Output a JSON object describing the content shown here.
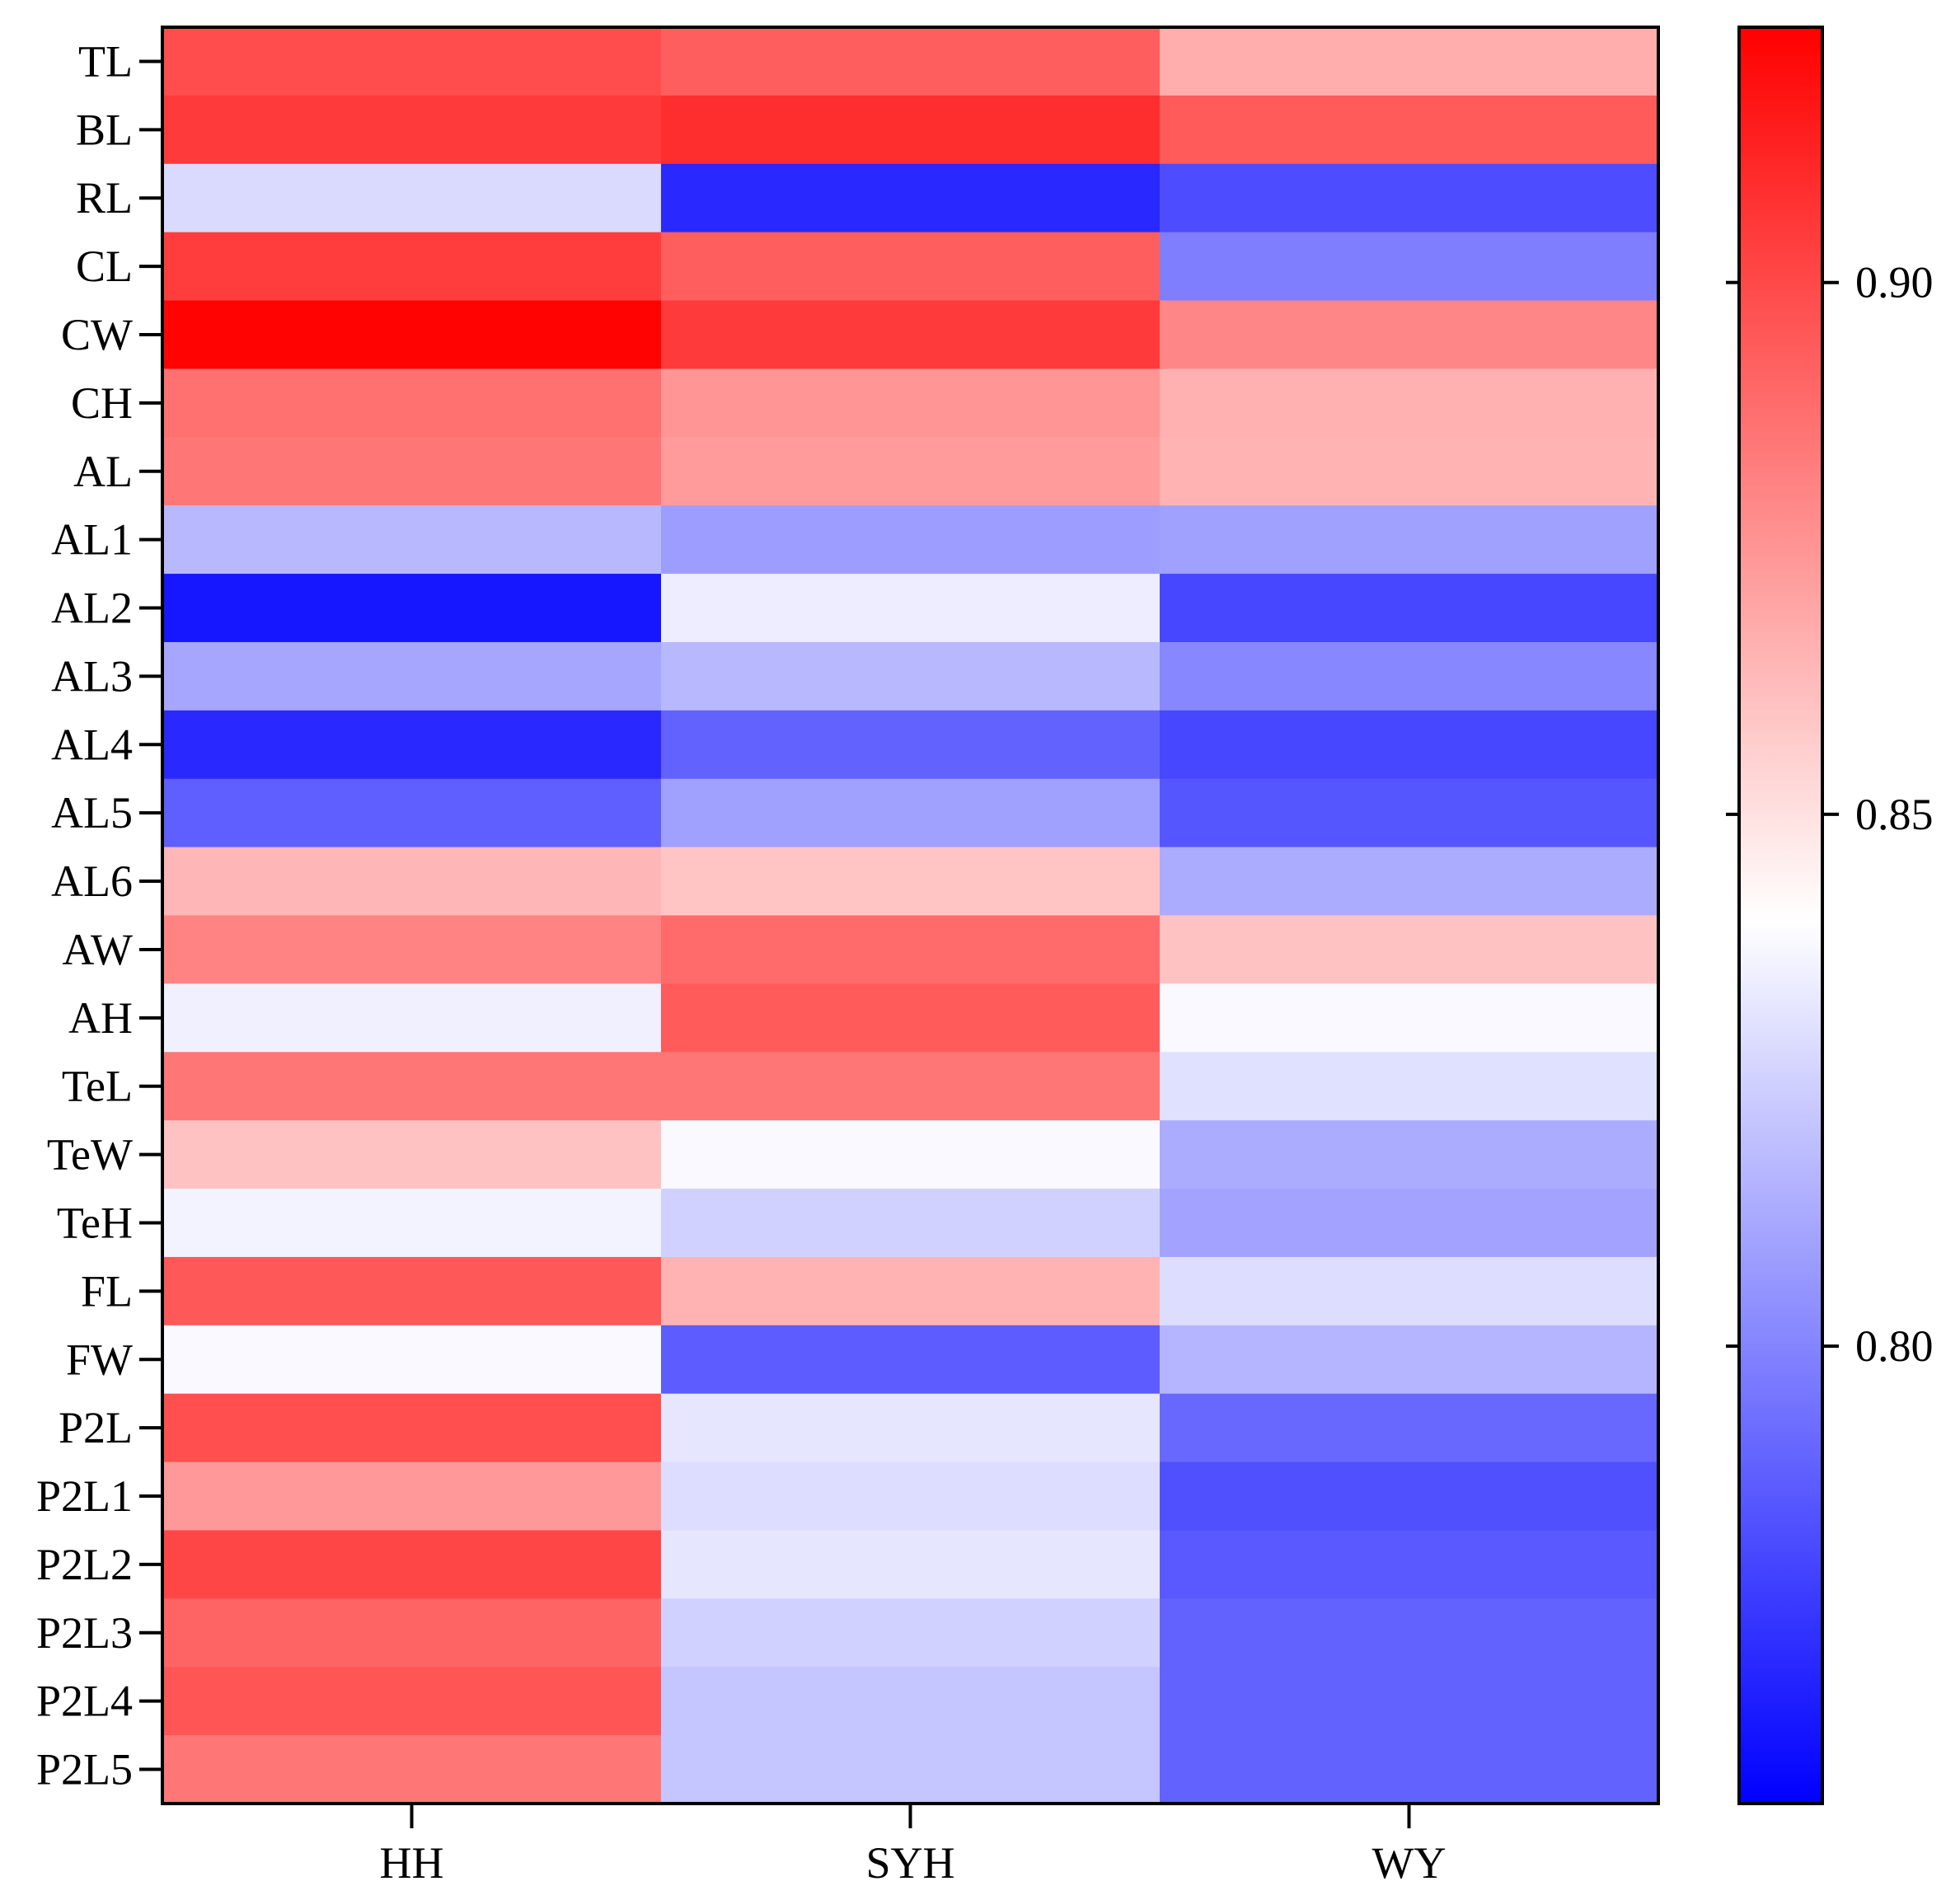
{
  "chart_data": {
    "type": "heatmap",
    "title": "",
    "xlabel": "",
    "ylabel": "",
    "columns": [
      "HH",
      "SYH",
      "WY"
    ],
    "rows": [
      "TL",
      "BL",
      "RL",
      "CL",
      "CW",
      "CH",
      "AL",
      "AL1",
      "AL2",
      "AL3",
      "AL4",
      "AL5",
      "AL6",
      "AW",
      "AH",
      "TeL",
      "TeW",
      "TeH",
      "FL",
      "FW",
      "P2L",
      "P2L1",
      "P2L2",
      "P2L3",
      "P2L4",
      "P2L5"
    ],
    "values": [
      [
        0.899,
        0.893,
        0.867
      ],
      [
        0.905,
        0.909,
        0.894
      ],
      [
        0.828,
        0.77,
        0.782
      ],
      [
        0.904,
        0.893,
        0.798
      ],
      [
        0.923,
        0.905,
        0.88
      ],
      [
        0.887,
        0.875,
        0.866
      ],
      [
        0.885,
        0.873,
        0.865
      ],
      [
        0.817,
        0.808,
        0.809
      ],
      [
        0.764,
        0.834,
        0.78
      ],
      [
        0.811,
        0.817,
        0.801
      ],
      [
        0.77,
        0.789,
        0.78
      ],
      [
        0.788,
        0.809,
        0.785
      ],
      [
        0.864,
        0.859,
        0.813
      ],
      [
        0.881,
        0.889,
        0.86
      ],
      [
        0.835,
        0.894,
        0.838
      ],
      [
        0.885,
        0.885,
        0.83
      ],
      [
        0.86,
        0.838,
        0.813
      ],
      [
        0.836,
        0.825,
        0.81
      ],
      [
        0.895,
        0.865,
        0.829
      ],
      [
        0.838,
        0.787,
        0.816
      ],
      [
        0.898,
        0.832,
        0.791
      ],
      [
        0.874,
        0.829,
        0.783
      ],
      [
        0.901,
        0.832,
        0.786
      ],
      [
        0.891,
        0.825,
        0.789
      ],
      [
        0.896,
        0.821,
        0.789
      ],
      [
        0.885,
        0.821,
        0.789
      ]
    ],
    "colorbar": {
      "min": 0.757,
      "max": 0.924,
      "center": 0.84,
      "ticks": [
        0.8,
        0.85,
        0.9
      ],
      "tick_labels": [
        "0.80",
        "0.85",
        "0.90"
      ],
      "colors": {
        "low": "#0000ff",
        "mid": "#ffffff",
        "high": "#ff0000"
      }
    }
  }
}
